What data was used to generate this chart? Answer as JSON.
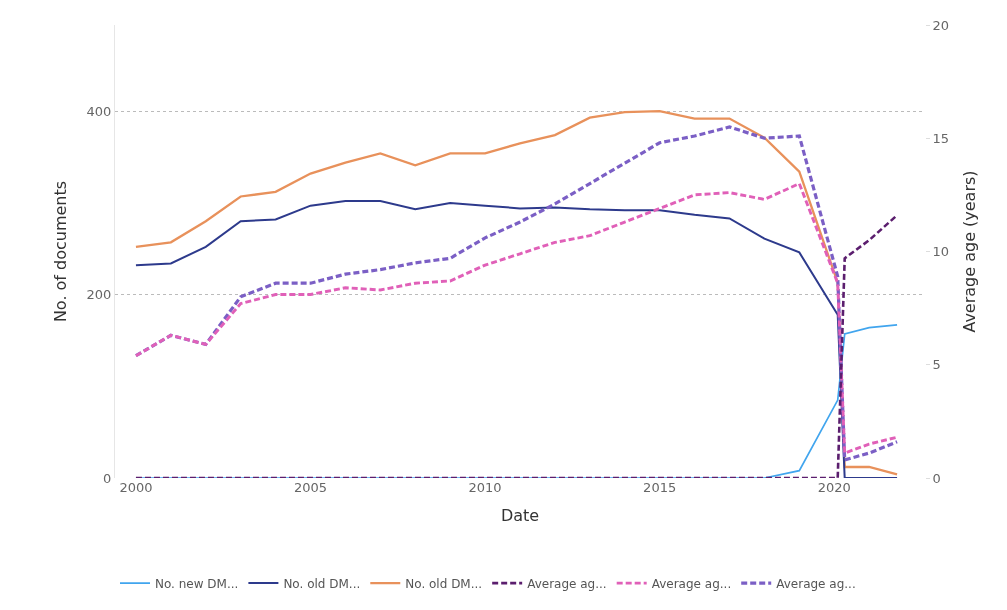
{
  "chart_data": {
    "type": "line",
    "xlabel": "Date",
    "ylabel": "No. of documents",
    "y2label": "Average age (years)",
    "x": [
      2000,
      2001,
      2002,
      2003,
      2004,
      2005,
      2006,
      2007,
      2008,
      2009,
      2010,
      2011,
      2012,
      2013,
      2014,
      2015,
      2016,
      2017,
      2018,
      2019,
      2020.1,
      2020.3,
      2021,
      2021.8
    ],
    "xlim": [
      1999.4,
      2022.6
    ],
    "xticks": [
      2000,
      2005,
      2010,
      2015,
      2020
    ],
    "ylim": [
      0,
      494
    ],
    "yticks": [
      0,
      200,
      400
    ],
    "y2lim": [
      0,
      20
    ],
    "y2ticks": [
      0,
      5,
      10,
      15,
      20
    ],
    "grid": "y",
    "legend": "bottom left",
    "series": [
      {
        "name": "No. new DM...",
        "color": "#41a5ee",
        "line_style": "solid",
        "values": [
          0,
          0,
          0,
          0,
          0,
          0,
          0,
          0,
          0,
          0,
          0,
          0,
          0,
          0,
          0,
          0,
          0,
          0,
          0,
          8,
          85,
          157,
          164,
          167
        ]
      },
      {
        "name": "No. old DM...",
        "color": "#2d3a8c",
        "line_style": "solid",
        "values": [
          232,
          234,
          252,
          280,
          282,
          297,
          302,
          302,
          293,
          300,
          297,
          294,
          295,
          293,
          292,
          292,
          287,
          283,
          261,
          246,
          178,
          0,
          0,
          0
        ]
      },
      {
        "name": "No. old DM...",
        "color": "#e8915b",
        "line_style": "solid",
        "values": [
          252,
          257,
          280,
          307,
          312,
          332,
          344,
          354,
          341,
          354,
          354,
          365,
          374,
          393,
          399,
          400,
          392,
          392,
          371,
          334,
          213,
          12,
          12,
          4
        ]
      },
      {
        "name": "Average ag...",
        "color": "#5b1e6e",
        "line_style": "dashed",
        "axis": "y2",
        "values": [
          0,
          0,
          0,
          0,
          0,
          0,
          0,
          0,
          0,
          0,
          0,
          0,
          0,
          0,
          0,
          0,
          0,
          0,
          0,
          0,
          0,
          9.7,
          10.5,
          11.6
        ]
      },
      {
        "name": "Average ag...",
        "color": "#e060b8",
        "line_style": "dashed",
        "axis": "y2",
        "values": [
          5.4,
          6.3,
          5.9,
          7.7,
          8.1,
          8.1,
          8.4,
          8.3,
          8.6,
          8.7,
          9.4,
          9.9,
          10.4,
          10.7,
          11.3,
          11.9,
          12.5,
          12.6,
          12.3,
          13.0,
          8.6,
          1.1,
          1.5,
          1.8
        ]
      },
      {
        "name": "Average ag...",
        "color": "#7b5fc5",
        "line_style": "dashed",
        "axis": "y2",
        "values": [
          5.4,
          6.3,
          5.9,
          8.0,
          8.6,
          8.6,
          9.0,
          9.2,
          9.5,
          9.7,
          10.6,
          11.3,
          12.1,
          13.0,
          13.9,
          14.8,
          15.1,
          15.5,
          15.0,
          15.1,
          8.9,
          0.8,
          1.1,
          1.6
        ]
      }
    ]
  }
}
